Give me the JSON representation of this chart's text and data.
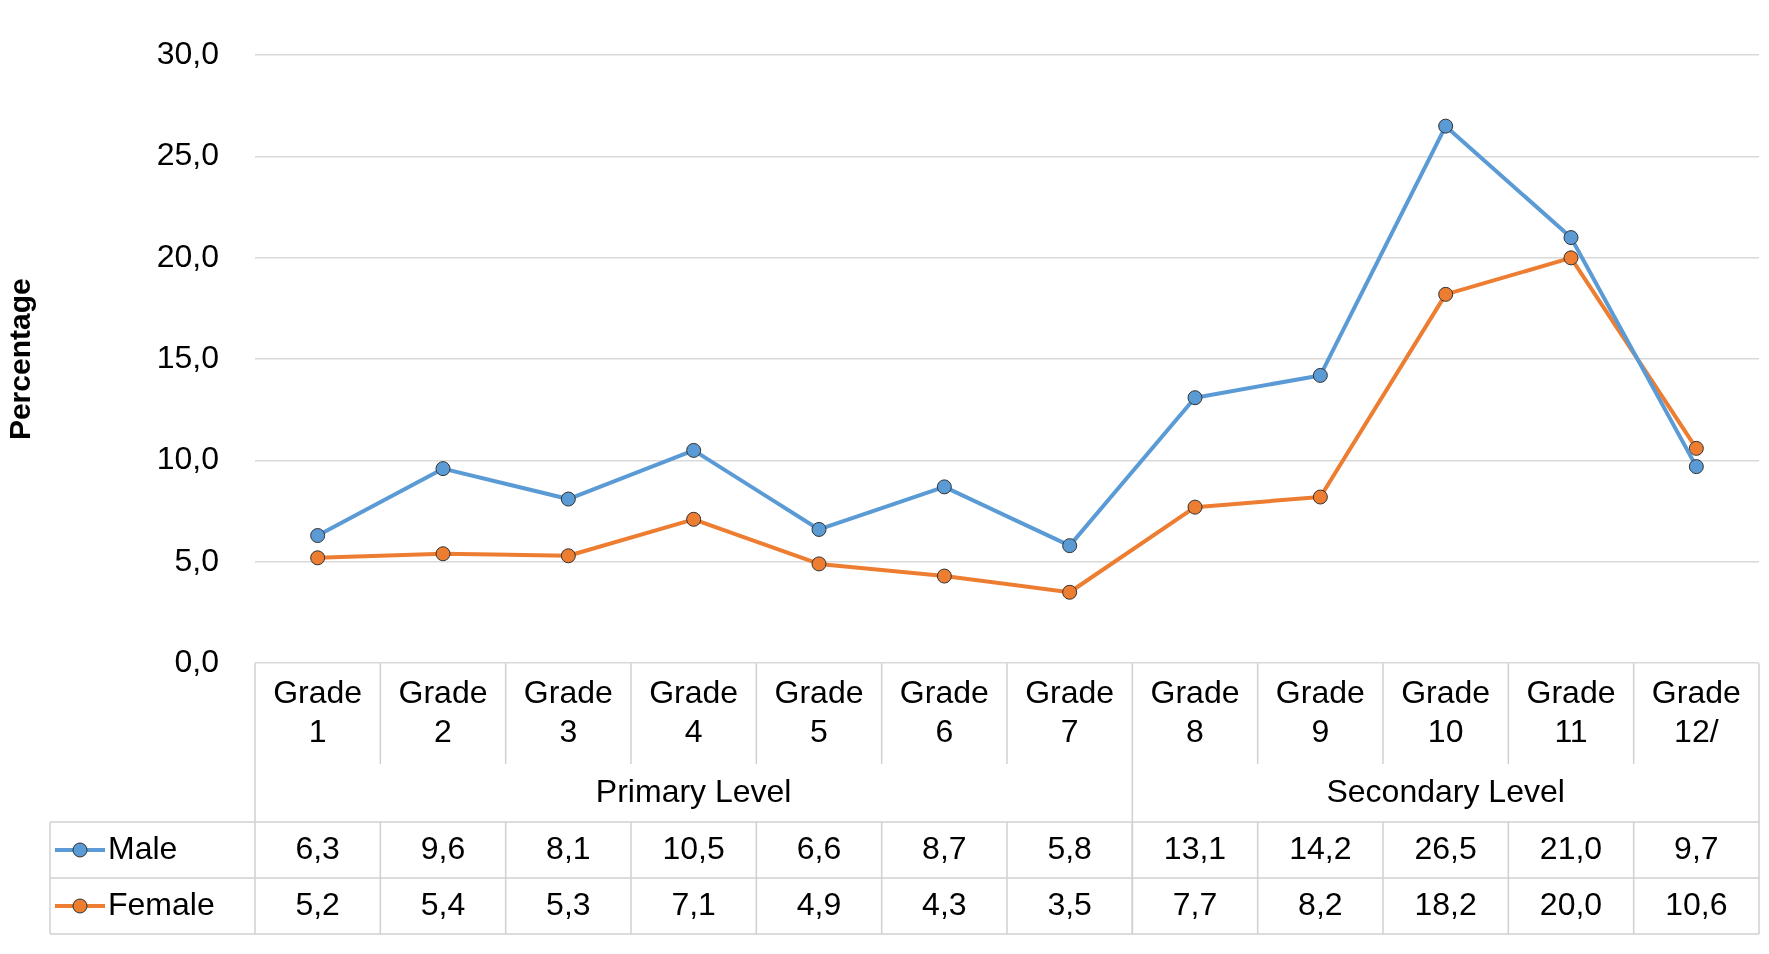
{
  "chart_data": {
    "type": "line",
    "ylabel": "Percentage",
    "categories": [
      "Grade 1",
      "Grade 2",
      "Grade 3",
      "Grade 4",
      "Grade 5",
      "Grade 6",
      "Grade 7",
      "Grade 8",
      "Grade 9",
      "Grade 10",
      "Grade 11",
      "Grade 12/"
    ],
    "series": [
      {
        "name": "Male",
        "color": "#5b9bd5",
        "values": [
          6.3,
          9.6,
          8.1,
          10.5,
          6.6,
          8.7,
          5.8,
          13.1,
          14.2,
          26.5,
          21.0,
          9.7
        ],
        "value_labels": [
          "6,3",
          "9,6",
          "8,1",
          "10,5",
          "6,6",
          "8,7",
          "5,8",
          "13,1",
          "14,2",
          "26,5",
          "21,0",
          "9,7"
        ]
      },
      {
        "name": "Female",
        "color": "#ed7d31",
        "values": [
          5.2,
          5.4,
          5.3,
          7.1,
          4.9,
          4.3,
          3.5,
          7.7,
          8.2,
          18.2,
          20.0,
          10.6
        ],
        "value_labels": [
          "5,2",
          "5,4",
          "5,3",
          "7,1",
          "4,9",
          "4,3",
          "3,5",
          "7,7",
          "8,2",
          "18,2",
          "20,0",
          "10,6"
        ]
      }
    ],
    "annotations": [
      "Primary Level",
      "Secondary Level"
    ],
    "ylim": [
      0,
      30
    ],
    "yticks": [
      {
        "value": 0,
        "label": "0,0"
      },
      {
        "value": 5,
        "label": "5,0"
      },
      {
        "value": 10,
        "label": "10,0"
      },
      {
        "value": 15,
        "label": "15,0"
      },
      {
        "value": 20,
        "label": "20,0"
      },
      {
        "value": 25,
        "label": "25,0"
      },
      {
        "value": 30,
        "label": "30,0"
      }
    ],
    "grid": "y",
    "legend": "bottom",
    "marker": "circle",
    "line_style": "solid"
  }
}
